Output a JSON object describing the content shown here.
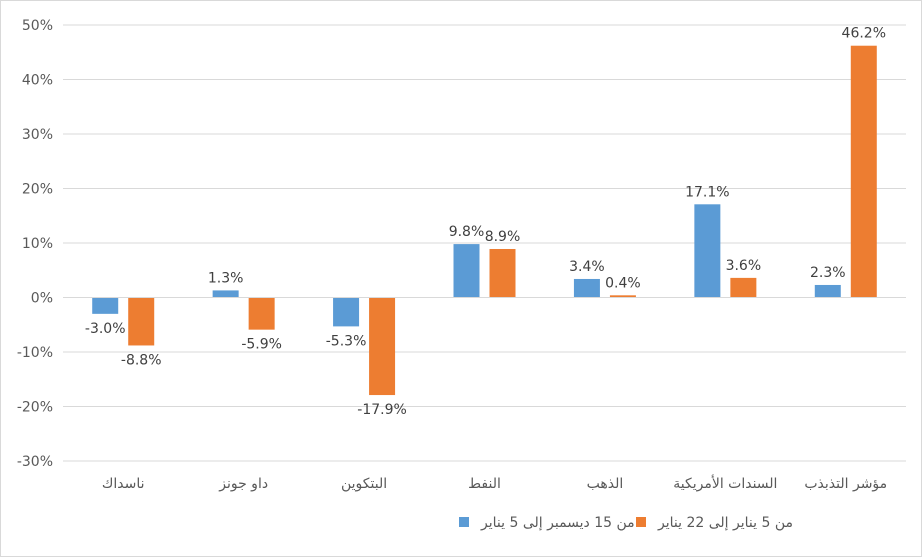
{
  "chart_data": {
    "type": "bar",
    "categories": [
      "ناسداك",
      "داو جونز",
      "البتكوين",
      "النفط",
      "الذهب",
      "السندات الأمريكية",
      "مؤشر التذبذب"
    ],
    "series": [
      {
        "name": "من 15 ديسمبر إلى 5 يناير",
        "color": "#5b9bd5",
        "values": [
          -3.0,
          1.3,
          -5.3,
          9.8,
          3.4,
          17.1,
          2.3
        ],
        "labels": [
          "-3.0%",
          "1.3%",
          "-5.3%",
          "9.8%",
          "3.4%",
          "17.1%",
          "2.3%"
        ]
      },
      {
        "name": "من 5 يناير إلى 22 يناير",
        "color": "#ed7d31",
        "values": [
          -8.8,
          -5.9,
          -17.9,
          8.9,
          0.4,
          3.6,
          46.2
        ],
        "labels": [
          "-8.8%",
          "-5.9%",
          "-17.9%",
          "8.9%",
          "0.4%",
          "3.6%",
          "46.2%"
        ]
      }
    ],
    "ylim": [
      -30,
      50
    ],
    "yticks": [
      "50%",
      "40%",
      "30%",
      "20%",
      "10%",
      "0%",
      "-10%",
      "-20%",
      "-30%"
    ],
    "grid": true,
    "legend_position": "bottom",
    "gridline_color": "#d9d9d9",
    "axis_color": "#d9d9d9"
  }
}
